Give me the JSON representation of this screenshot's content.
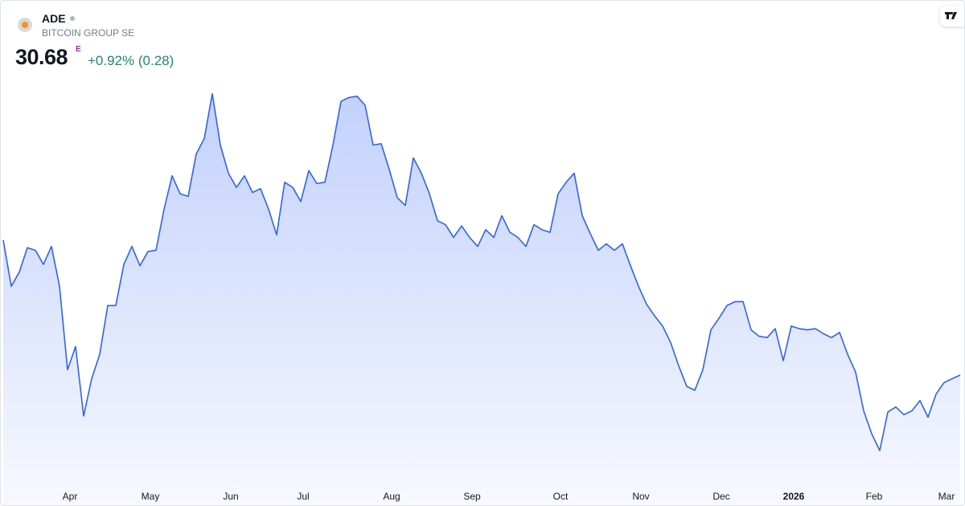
{
  "header": {
    "symbol": "ADE",
    "name": "BITCOIN GROUP SE",
    "price": "30.68",
    "price_flag": "E",
    "change": "+0.92% (0.28)"
  },
  "chart_data": {
    "type": "line",
    "area": true,
    "color": "#2f62ee",
    "categories": [
      null,
      null,
      null,
      null,
      null,
      null,
      null,
      null,
      "Apr",
      null,
      null,
      null,
      null,
      null,
      null,
      null,
      null,
      null,
      "May",
      null,
      null,
      null,
      null,
      null,
      null,
      null,
      null,
      null,
      "Jun",
      null,
      null,
      null,
      null,
      null,
      null,
      null,
      null,
      "Jul",
      null,
      null,
      null,
      null,
      null,
      null,
      null,
      null,
      null,
      null,
      "Aug",
      null,
      null,
      null,
      null,
      null,
      null,
      null,
      null,
      null,
      "Sep",
      null,
      null,
      null,
      null,
      null,
      null,
      null,
      null,
      null,
      null,
      "Oct",
      null,
      null,
      null,
      null,
      null,
      null,
      null,
      null,
      null,
      "Nov",
      null,
      null,
      null,
      null,
      null,
      null,
      null,
      null,
      null,
      "Dec",
      null,
      null,
      null,
      null,
      null,
      null,
      null,
      null,
      "2026",
      null,
      null,
      null,
      null,
      null,
      null,
      null,
      null,
      null,
      "Feb",
      null,
      null,
      null,
      null,
      null,
      null,
      null,
      null,
      "Mar",
      null,
      null
    ],
    "values": [
      41.2,
      37.6,
      38.7,
      40.6,
      40.4,
      39.3,
      40.7,
      37.6,
      31.1,
      32.9,
      27.5,
      30.4,
      32.3,
      36.1,
      36.1,
      39.3,
      40.7,
      39.2,
      40.3,
      40.4,
      43.6,
      46.2,
      44.8,
      44.6,
      47.9,
      49.1,
      52.6,
      48.6,
      46.4,
      45.3,
      46.2,
      44.9,
      45.2,
      43.6,
      41.6,
      45.7,
      45.3,
      44.2,
      46.6,
      45.6,
      45.7,
      48.6,
      52.0,
      52.3,
      52.4,
      51.7,
      48.6,
      48.7,
      46.7,
      44.5,
      43.9,
      47.6,
      46.4,
      44.8,
      42.7,
      42.4,
      41.4,
      42.3,
      41.4,
      40.7,
      42.0,
      41.4,
      43.1,
      41.8,
      41.4,
      40.7,
      42.4,
      42.0,
      41.8,
      44.8,
      45.7,
      46.4,
      43.1,
      41.7,
      40.4,
      40.9,
      40.4,
      40.9,
      39.2,
      37.6,
      36.2,
      35.3,
      34.5,
      33.2,
      31.4,
      29.8,
      29.5,
      31.1,
      34.2,
      35.1,
      36.1,
      36.4,
      36.4,
      34.2,
      33.7,
      33.6,
      34.3,
      31.8,
      34.5,
      34.3,
      34.2,
      34.3,
      33.9,
      33.6,
      34.0,
      32.3,
      30.9,
      27.9,
      26.1,
      24.8,
      27.8,
      28.2,
      27.6,
      27.9,
      28.7,
      27.4,
      29.2,
      30.1,
      30.4,
      30.68
    ],
    "ylim": [
      22.3,
      54.2
    ]
  }
}
